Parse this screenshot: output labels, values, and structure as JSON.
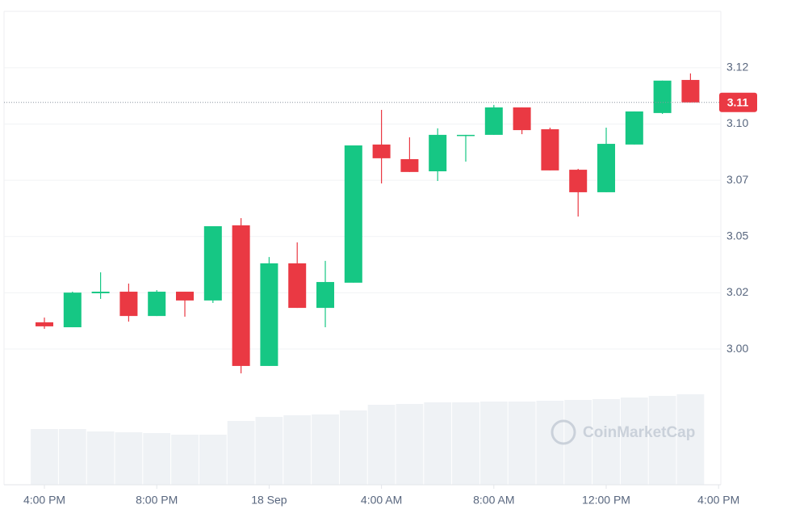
{
  "chart_data": {
    "type": "candlestick",
    "x": [
      0,
      1,
      2,
      3,
      4,
      5,
      6,
      7,
      8,
      9,
      10,
      11,
      12,
      13,
      14,
      15,
      16,
      17,
      18,
      19,
      20,
      21,
      22,
      23
    ],
    "open": [
      3.0119,
      3.0097,
      3.0248,
      3.0255,
      3.0147,
      3.0255,
      3.0216,
      3.055,
      2.9925,
      3.0381,
      3.0183,
      3.0295,
      3.0909,
      3.0844,
      3.079,
      3.0948,
      3.0952,
      3.1074,
      3.0977,
      3.0797,
      3.0697,
      3.0909,
      3.1049,
      3.1196
    ],
    "high": [
      3.014,
      3.0255,
      3.0341,
      3.0291,
      3.0262,
      3.0255,
      3.0546,
      3.0582,
      3.0409,
      3.0474,
      3.0392,
      3.0905,
      3.1063,
      3.0941,
      3.0981,
      3.0952,
      3.1085,
      3.1074,
      3.0984,
      3.0801,
      3.0984,
      3.1056,
      3.1193,
      3.1225
    ],
    "low": [
      3.009,
      3.0097,
      3.0223,
      3.0122,
      3.0147,
      3.0144,
      3.0205,
      2.9892,
      2.9925,
      3.0183,
      3.0097,
      3.0295,
      3.0736,
      3.0787,
      3.0747,
      3.0833,
      3.0952,
      3.0955,
      3.0794,
      3.0589,
      3.0697,
      3.0909,
      3.1045,
      3.1096
    ],
    "close": [
      3.0101,
      3.0251,
      3.0255,
      3.0147,
      3.0255,
      3.0216,
      3.0546,
      2.9925,
      3.0381,
      3.0183,
      3.0298,
      3.0905,
      3.0848,
      3.0787,
      3.0952,
      3.0952,
      3.1074,
      3.0973,
      3.0794,
      3.0697,
      3.0912,
      3.1056,
      3.1193,
      3.1096
    ],
    "volume": [
      69,
      69,
      66,
      65,
      64,
      62,
      62,
      79,
      84,
      86,
      87,
      92,
      99,
      100,
      102,
      102,
      103,
      103,
      104,
      105,
      106,
      108,
      110,
      112
    ],
    "volume_lim": [
      0,
      160
    ],
    "up_color": "#16c784",
    "down_color": "#ea3943",
    "volume_color": "#eff2f5",
    "xlim": [
      -1.437,
      24.08
    ],
    "xticks": [
      {
        "value": 0,
        "label": "4:00 PM"
      },
      {
        "value": 4,
        "label": "8:00 PM"
      },
      {
        "value": 8,
        "label": "18 Sep"
      },
      {
        "value": 12,
        "label": "4:00 AM"
      },
      {
        "value": 16,
        "label": "8:00 AM"
      },
      {
        "value": 20,
        "label": "12:00 PM"
      },
      {
        "value": 24,
        "label": "4:00 PM"
      }
    ],
    "ylim": [
      2.9397,
      3.1501
    ],
    "yticks": [
      {
        "value": 3.0,
        "label": "3.00"
      },
      {
        "value": 3.025,
        "label": "3.02"
      },
      {
        "value": 3.05,
        "label": "3.05"
      },
      {
        "value": 3.075,
        "label": "3.07"
      },
      {
        "value": 3.1,
        "label": "3.10"
      },
      {
        "value": 3.125,
        "label": "3.12"
      }
    ],
    "grid": true,
    "last_price": 3.1096,
    "last_price_label": "3.11",
    "watermark": "CoinMarketCap"
  }
}
